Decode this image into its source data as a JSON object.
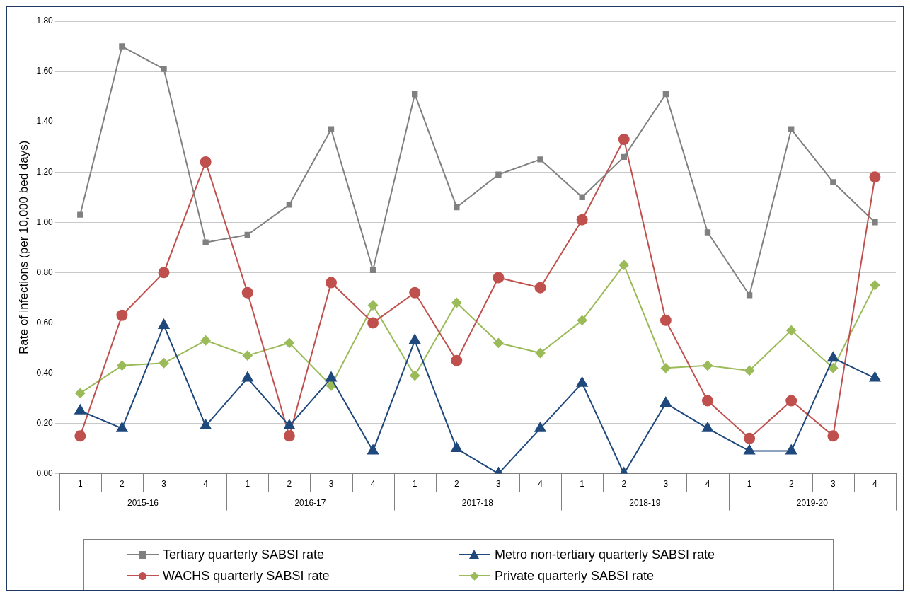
{
  "chart_data": {
    "type": "line",
    "ylabel": "Rate of infections (per 10,000 bed days)",
    "categories": [
      "1",
      "2",
      "3",
      "4",
      "1",
      "2",
      "3",
      "4",
      "1",
      "2",
      "3",
      "4",
      "1",
      "2",
      "3",
      "4",
      "1",
      "2",
      "3",
      "4"
    ],
    "annotations": [
      "2015-16",
      "2016-17",
      "2017-18",
      "2018-19",
      "2019-20"
    ],
    "series": [
      {
        "name": "Tertiary quarterly SABSI rate",
        "color": "#808080",
        "marker": "square",
        "values": [
          1.03,
          1.7,
          1.61,
          0.92,
          0.95,
          1.07,
          1.37,
          0.81,
          1.51,
          1.06,
          1.19,
          1.25,
          1.1,
          1.26,
          1.51,
          0.96,
          0.71,
          1.37,
          1.16,
          1.0
        ]
      },
      {
        "name": "Metro non-tertiary quarterly SABSI rate",
        "color": "#1f497d",
        "marker": "triangle",
        "values": [
          0.25,
          0.18,
          0.59,
          0.19,
          0.38,
          0.19,
          0.38,
          0.09,
          0.53,
          0.1,
          0.0,
          0.18,
          0.36,
          0.0,
          0.28,
          0.18,
          0.09,
          0.09,
          0.46,
          0.38
        ]
      },
      {
        "name": "WACHS quarterly SABSI rate",
        "color": "#c0504d",
        "marker": "circle",
        "values": [
          0.15,
          0.63,
          0.8,
          1.24,
          0.72,
          0.15,
          0.76,
          0.6,
          0.72,
          0.45,
          0.78,
          0.74,
          1.01,
          1.33,
          0.61,
          0.29,
          0.14,
          0.29,
          0.15,
          1.18
        ]
      },
      {
        "name": "Private quarterly SABSI rate",
        "color": "#9bbb59",
        "marker": "diamond",
        "values": [
          0.32,
          0.43,
          0.44,
          0.53,
          0.47,
          0.52,
          0.35,
          0.67,
          0.39,
          0.68,
          0.52,
          0.48,
          0.61,
          0.83,
          0.42,
          0.43,
          0.41,
          0.57,
          0.42,
          0.75
        ]
      }
    ],
    "ylim": [
      0,
      1.8
    ],
    "yticks": [
      {
        "value": 0,
        "label": "0.00"
      },
      {
        "value": 0.2,
        "label": "0.20"
      },
      {
        "value": 0.4,
        "label": "0.40"
      },
      {
        "value": 0.6,
        "label": "0.60"
      },
      {
        "value": 0.8,
        "label": "0.80"
      },
      {
        "value": 1,
        "label": "1.00"
      },
      {
        "value": 1.2,
        "label": "1.20"
      },
      {
        "value": 1.4,
        "label": "1.40"
      },
      {
        "value": 1.6,
        "label": "1.60"
      },
      {
        "value": 1.8,
        "label": "1.80"
      }
    ],
    "grid": "y",
    "legend": "bottom",
    "line_style": "solid"
  }
}
